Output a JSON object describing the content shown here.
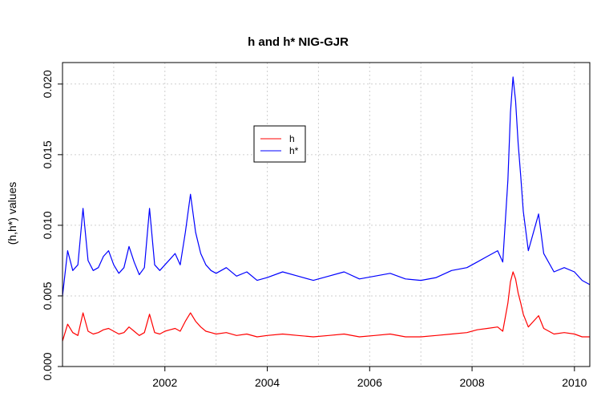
{
  "chart_data": {
    "type": "line",
    "title": "h and h* NIG-GJR",
    "xlabel": "",
    "ylabel": "(h,h*) values",
    "xlim": [
      2000.0,
      2010.3
    ],
    "ylim": [
      0.0,
      0.0205
    ],
    "x_ticks": [
      2002,
      2004,
      2006,
      2008,
      2010
    ],
    "x_tick_labels": [
      "2002",
      "2004",
      "2006",
      "2008",
      "2010"
    ],
    "y_ticks": [
      0.0,
      0.005,
      0.01,
      0.015,
      0.02
    ],
    "y_tick_labels": [
      "0.000",
      "0.005",
      "0.010",
      "0.015",
      "0.020"
    ],
    "grid": true,
    "legend_position": "upper-center",
    "colors": {
      "h": "#ff0000",
      "hstar": "#0000ff"
    },
    "series": [
      {
        "name": "h",
        "color": "#ff0000",
        "x": [
          2000.0,
          2000.1,
          2000.2,
          2000.3,
          2000.4,
          2000.5,
          2000.6,
          2000.7,
          2000.8,
          2000.9,
          2001.0,
          2001.1,
          2001.2,
          2001.3,
          2001.4,
          2001.5,
          2001.6,
          2001.7,
          2001.8,
          2001.9,
          2002.0,
          2002.1,
          2002.2,
          2002.3,
          2002.4,
          2002.5,
          2002.6,
          2002.7,
          2002.8,
          2002.9,
          2003.0,
          2003.2,
          2003.4,
          2003.6,
          2003.8,
          2004.0,
          2004.3,
          2004.6,
          2004.9,
          2005.2,
          2005.5,
          2005.8,
          2006.1,
          2006.4,
          2006.7,
          2007.0,
          2007.3,
          2007.6,
          2007.9,
          2008.1,
          2008.3,
          2008.5,
          2008.6,
          2008.7,
          2008.75,
          2008.8,
          2008.85,
          2008.9,
          2008.95,
          2009.0,
          2009.1,
          2009.2,
          2009.3,
          2009.4,
          2009.6,
          2009.8,
          2010.0,
          2010.15,
          2010.3
        ],
        "y": [
          0.0018,
          0.003,
          0.0024,
          0.0022,
          0.0038,
          0.0025,
          0.0023,
          0.0024,
          0.0026,
          0.0027,
          0.0025,
          0.0023,
          0.0024,
          0.0028,
          0.0025,
          0.0022,
          0.0024,
          0.0037,
          0.0024,
          0.0023,
          0.0025,
          0.0026,
          0.0027,
          0.0025,
          0.0032,
          0.0038,
          0.0032,
          0.0028,
          0.0025,
          0.0024,
          0.0023,
          0.0024,
          0.0022,
          0.0023,
          0.0021,
          0.0022,
          0.0023,
          0.0022,
          0.0021,
          0.0022,
          0.0023,
          0.0021,
          0.0022,
          0.0023,
          0.0021,
          0.0021,
          0.0022,
          0.0023,
          0.0024,
          0.0026,
          0.0027,
          0.0028,
          0.0025,
          0.0045,
          0.006,
          0.0067,
          0.0062,
          0.0052,
          0.0045,
          0.0037,
          0.0028,
          0.0032,
          0.0036,
          0.0027,
          0.0023,
          0.0024,
          0.0023,
          0.0021,
          0.0021
        ]
      },
      {
        "name": "h*",
        "color": "#0000ff",
        "x": [
          2000.0,
          2000.1,
          2000.2,
          2000.3,
          2000.4,
          2000.5,
          2000.6,
          2000.7,
          2000.8,
          2000.9,
          2001.0,
          2001.1,
          2001.2,
          2001.3,
          2001.4,
          2001.5,
          2001.6,
          2001.7,
          2001.8,
          2001.9,
          2002.0,
          2002.1,
          2002.2,
          2002.3,
          2002.4,
          2002.5,
          2002.6,
          2002.7,
          2002.8,
          2002.9,
          2003.0,
          2003.2,
          2003.4,
          2003.6,
          2003.8,
          2004.0,
          2004.3,
          2004.6,
          2004.9,
          2005.2,
          2005.5,
          2005.8,
          2006.1,
          2006.4,
          2006.7,
          2007.0,
          2007.3,
          2007.6,
          2007.9,
          2008.1,
          2008.3,
          2008.5,
          2008.6,
          2008.7,
          2008.75,
          2008.8,
          2008.85,
          2008.9,
          2008.95,
          2009.0,
          2009.1,
          2009.2,
          2009.3,
          2009.4,
          2009.6,
          2009.8,
          2010.0,
          2010.15,
          2010.3
        ],
        "y": [
          0.005,
          0.0082,
          0.0068,
          0.0072,
          0.0112,
          0.0075,
          0.0068,
          0.007,
          0.0078,
          0.0082,
          0.0072,
          0.0066,
          0.007,
          0.0085,
          0.0074,
          0.0065,
          0.007,
          0.0112,
          0.0072,
          0.0068,
          0.0072,
          0.0076,
          0.008,
          0.0072,
          0.0095,
          0.0122,
          0.0095,
          0.008,
          0.0072,
          0.0068,
          0.0066,
          0.007,
          0.0064,
          0.0067,
          0.0061,
          0.0063,
          0.0067,
          0.0064,
          0.0061,
          0.0064,
          0.0067,
          0.0062,
          0.0064,
          0.0066,
          0.0062,
          0.0061,
          0.0063,
          0.0068,
          0.007,
          0.0074,
          0.0078,
          0.0082,
          0.0074,
          0.0132,
          0.018,
          0.0205,
          0.0188,
          0.0158,
          0.0135,
          0.011,
          0.0082,
          0.0095,
          0.0108,
          0.008,
          0.0067,
          0.007,
          0.0067,
          0.0061,
          0.0058
        ]
      }
    ]
  }
}
